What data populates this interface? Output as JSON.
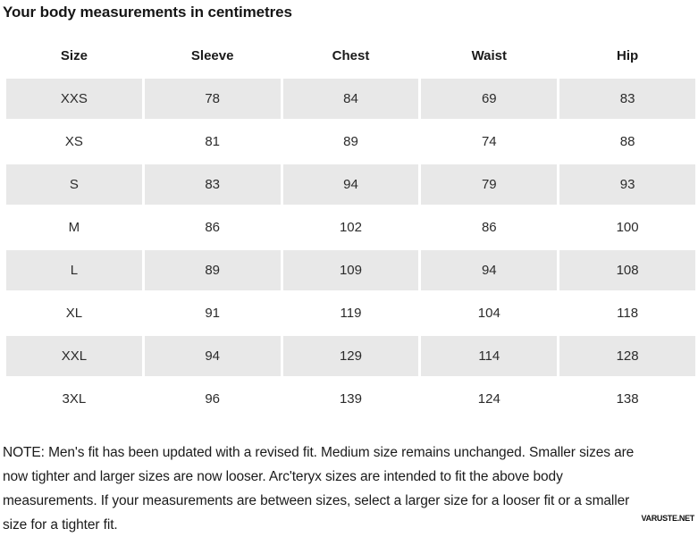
{
  "page": {
    "title": "Your body measurements in centimetres",
    "watermark": "VARUSTE.NET"
  },
  "table": {
    "columns": [
      "Size",
      "Sleeve",
      "Chest",
      "Waist",
      "Hip"
    ],
    "rows": [
      {
        "size": "XXS",
        "values": [
          78,
          84,
          69,
          83
        ]
      },
      {
        "size": "XS",
        "values": [
          81,
          89,
          74,
          88
        ]
      },
      {
        "size": "S",
        "values": [
          83,
          94,
          79,
          93
        ]
      },
      {
        "size": "M",
        "values": [
          86,
          102,
          86,
          100
        ]
      },
      {
        "size": "L",
        "values": [
          89,
          109,
          94,
          108
        ]
      },
      {
        "size": "XL",
        "values": [
          91,
          119,
          104,
          118
        ]
      },
      {
        "size": "XXL",
        "values": [
          94,
          129,
          114,
          128
        ]
      },
      {
        "size": "3XL",
        "values": [
          96,
          139,
          124,
          138
        ]
      }
    ]
  },
  "note": {
    "lines": [
      "NOTE: Men's fit has been updated with a revised fit. Medium size remains unchanged. Smaller sizes are",
      "now tighter and larger sizes are now looser. Arc'teryx sizes are intended to fit the above body",
      "measurements. If your measurements are between sizes, select a larger size for a looser fit or a smaller",
      "size for a tighter fit."
    ],
    "full_text": "NOTE: Men's fit has been updated with a revised fit. Medium size remains unchanged. Smaller sizes are now tighter and larger sizes are now looser. Arc'teryx sizes are intended to fit the above body measurements. If your measurements are between sizes, select a larger size for a looser fit or a smaller size for a tighter fit."
  },
  "colors": {
    "row_stripe": "#e8e8e8",
    "text_primary": "#1b1b1b",
    "background": "#ffffff"
  }
}
